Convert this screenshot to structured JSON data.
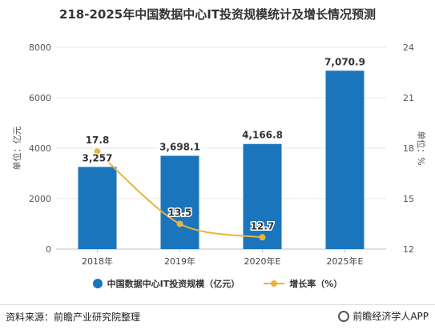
{
  "title": "218-2025年中国数据中心IT投资规模统计及增长情况预测",
  "source": "资料来源：前瞻产业研究院整理",
  "brand": "前瞻经济学人APP",
  "colors": {
    "bar": "#1a75bc",
    "line": "#e8b43c",
    "grid": "#e6e6e6"
  },
  "chart_data": {
    "type": "bar",
    "categories": [
      "2018年",
      "2019年",
      "2020年E",
      "2025年E"
    ],
    "series": [
      {
        "name": "中国数据中心IT投资规模（亿元）",
        "type": "bar",
        "axis": "left",
        "values": [
          3257,
          3698.1,
          4166.8,
          7070.9
        ],
        "labels": [
          "3,257",
          "3,698.1",
          "4,166.8",
          "7,070.9"
        ]
      },
      {
        "name": "增长率（%）",
        "type": "line",
        "axis": "right",
        "values": [
          17.8,
          13.5,
          12.7,
          null
        ],
        "labels": [
          "17.8",
          "13.5",
          "12.7",
          ""
        ]
      }
    ],
    "y_left": {
      "label": "单位：亿元",
      "min": 0,
      "max": 8000,
      "ticks": [
        "0",
        "2000",
        "4000",
        "6000",
        "8000"
      ]
    },
    "y_right": {
      "label": "单位：%",
      "min": 12,
      "max": 24,
      "ticks": [
        "12",
        "15",
        "18",
        "21",
        "24"
      ]
    },
    "grid": true,
    "legend_position": "bottom"
  }
}
